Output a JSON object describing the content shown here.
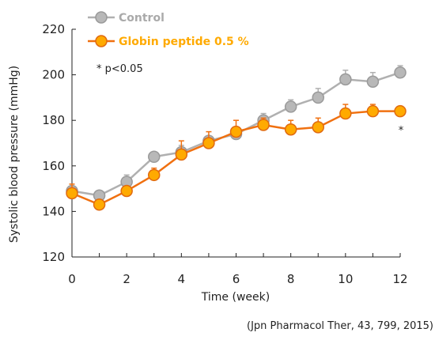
{
  "chart_data": {
    "type": "line",
    "xlabel": "Time (week)",
    "ylabel": "Systolic blood pressure (mmHg)",
    "xlim": [
      0,
      12
    ],
    "ylim": [
      120,
      220
    ],
    "x_ticks": [
      0,
      2,
      4,
      6,
      8,
      10,
      12
    ],
    "y_ticks": [
      120,
      140,
      160,
      180,
      200,
      220
    ],
    "grid": false,
    "legend_position": "top-left",
    "x": [
      0,
      1,
      2,
      3,
      4,
      5,
      6,
      7,
      8,
      9,
      10,
      11,
      12
    ],
    "series": [
      {
        "name": "Control",
        "line_color": "#b0b0b0",
        "marker_fill": "#b8b8b8",
        "marker_edge": "#9a9a9a",
        "label_color": "#aaaaaa",
        "values": [
          149,
          147,
          153,
          164,
          166,
          171,
          174,
          180,
          186,
          190,
          198,
          197,
          201
        ],
        "error_upper": [
          2,
          2,
          3,
          2,
          3,
          2,
          2,
          3,
          3,
          4,
          4,
          4,
          3
        ]
      },
      {
        "name": "Globin peptide 0.5 %",
        "line_color": "#f07010",
        "marker_fill": "#ffaa00",
        "marker_edge": "#e06a10",
        "label_color": "#ffaa00",
        "values": [
          148,
          143,
          149,
          156,
          165,
          170,
          175,
          178,
          176,
          177,
          183,
          184,
          184
        ],
        "error_upper": [
          4,
          1,
          2,
          3,
          6,
          5,
          5,
          3,
          4,
          4,
          4,
          3,
          2
        ]
      }
    ],
    "annotations": {
      "significance_note": "* p<0.05",
      "significance_marker": "*"
    },
    "citation": "(Jpn Pharmacol Ther, 43, 799, 2015)"
  }
}
